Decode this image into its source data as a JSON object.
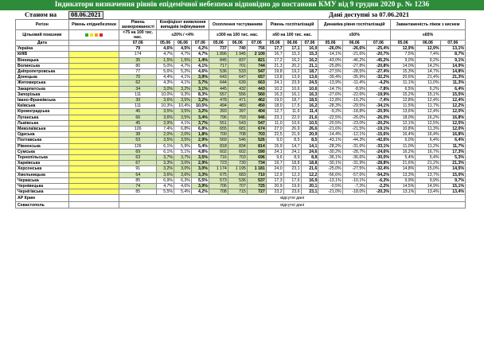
{
  "title": "Індикатори визначення рівнів епідемічної небезпеки відповідно до постанови КМУ від 9 грудня 2020 р. № 1236",
  "status": {
    "label": "Станом на",
    "date": "08.06.2021",
    "available": "Дані доступні за 07.06.2021"
  },
  "swatch_colors": [
    "#33aa33",
    "#ffdd00",
    "#ff9900",
    "#dd2222"
  ],
  "header": {
    "region": "Регіон",
    "level": "Рівень епіднебезпеки",
    "load": "Рівень захворюваності",
    "pcr": "Коефіцієнт виявлення випадків інфікування",
    "testing": "Охоплення тестуванням",
    "hosp": "Рівень госпіталізацій",
    "dynamics": "Динаміка рівня госпіталізацій",
    "oxygen": "Завантаженість ліжок з киснем",
    "target_label": "Цільовий показник",
    "target_load": "<75 на 100 тис. нас.",
    "target_pcr": "≤20% / <4%",
    "target_testing": "≥300 на 100 тис. нас.",
    "target_hosp": "≤60 на 100 тис. нас.",
    "target_dyn": "≤50%",
    "target_oxy": "≤65%",
    "date_label": "Дата",
    "dates": [
      "07.06",
      "05.06",
      "06.06",
      "07.06",
      "05.06",
      "06.06",
      "07.06",
      "05.06",
      "06.06",
      "07.06",
      "05.06",
      "06.06",
      "07.06",
      "05.06",
      "06.06",
      "07.06"
    ]
  },
  "rows": [
    {
      "name": "Україна",
      "v": [
        "79",
        "4,6%",
        "4,5%",
        "4,2%",
        "737",
        "740",
        "756",
        "17,7",
        "17,1",
        "16,9",
        "-26,0%",
        "-26,6%",
        "-25,4%",
        "12,9%",
        "12,9%",
        "13,1%"
      ]
    },
    {
      "name": "КИЇВ",
      "v": [
        "174",
        "4,7%",
        "4,7%",
        "4,7%",
        "1 896",
        "1 945",
        "2 100",
        "16,7",
        "15,3",
        "15,3",
        "-14,1%",
        "-21,6%",
        "-20,7%",
        "7,5%",
        "7,4%",
        "8,7%"
      ]
    },
    {
      "name": "Вінницька",
      "v": [
        "35",
        "1,5%",
        "1,5%",
        "1,4%",
        "845",
        "837",
        "821",
        "17,2",
        "16,2",
        "16,2",
        "-43,0%",
        "-46,2%",
        "-45,2%",
        "9,0%",
        "9,2%",
        "9,1%"
      ]
    },
    {
      "name": "Волинська",
      "v": [
        "80",
        "5,0%",
        "4,7%",
        "4,1%",
        "717",
        "701",
        "744",
        "21,3",
        "20,2",
        "21,1",
        "-25,8%",
        "-27,8%",
        "-20,8%",
        "14,0%",
        "14,2%",
        "14,9%"
      ]
    },
    {
      "name": "Дніпропетровська",
      "v": [
        "77",
        "5,6%",
        "5,2%",
        "4,6%",
        "536",
        "533",
        "547",
        "19,8",
        "19,2",
        "18,7",
        "-27,5%",
        "-28,5%",
        "-27,4%",
        "15,3%",
        "14,7%",
        "14,8%"
      ]
    },
    {
      "name": "Донецька",
      "v": [
        "70",
        "4,4%",
        "4,1%",
        "3,9%",
        "643",
        "647",
        "657",
        "13,8",
        "13,9",
        "13,6",
        "-39,4%",
        "-35,9%",
        "-32,2%",
        "20,6%",
        "21,4%",
        "21,3%"
      ]
    },
    {
      "name": "Житомирська",
      "v": [
        "62",
        "4,3%",
        "4,1%",
        "3,7%",
        "644",
        "639",
        "663",
        "24,1",
        "23,9",
        "24,5",
        "-13,9%",
        "-11,4%",
        "-4,2%",
        "11,1%",
        "11,0%",
        "11,3%"
      ]
    },
    {
      "name": "Закарпатська",
      "v": [
        "34",
        "3,0%",
        "3,2%",
        "3,1%",
        "445",
        "432",
        "443",
        "10,2",
        "10,6",
        "10,6",
        "-14,7%",
        "-8,9%",
        "-7,8%",
        "6,5%",
        "6,2%",
        "6,4%"
      ]
    },
    {
      "name": "Запорізька",
      "v": [
        "111",
        "10,0%",
        "9,3%",
        "8,3%",
        "557",
        "556",
        "560",
        "16,3",
        "16,1",
        "16,3",
        "-27,6%",
        "-22,6%",
        "-19,9%",
        "15,2%",
        "15,1%",
        "15,5%"
      ]
    },
    {
      "name": "Івано-Франківська",
      "v": [
        "39",
        "3,6%",
        "3,5%",
        "3,2%",
        "478",
        "471",
        "462",
        "19,0",
        "18,7",
        "18,5",
        "-12,8%",
        "-10,2%",
        "-7,4%",
        "12,8%",
        "12,4%",
        "12,4%"
      ]
    },
    {
      "name": "Київська",
      "v": [
        "111",
        "10,3%",
        "10,4%",
        "10,5%",
        "494",
        "483",
        "450",
        "18,0",
        "17,5",
        "16,2",
        "-28,3%",
        "-29,5%",
        "-34,1%",
        "11,5%",
        "11,7%",
        "12,2%"
      ]
    },
    {
      "name": "Кіровоградська",
      "v": [
        "46",
        "3,5%",
        "3,5%",
        "3,2%",
        "393",
        "397",
        "404",
        "12,7",
        "11,6",
        "11,4",
        "-9,2%",
        "-18,8%",
        "-20,9%",
        "13,6%",
        "12,4%",
        "12,0%"
      ]
    },
    {
      "name": "Луганська",
      "v": [
        "66",
        "3,6%",
        "3,5%",
        "3,4%",
        "796",
        "793",
        "946",
        "23,1",
        "22,0",
        "21,6",
        "-22,5%",
        "-26,0%",
        "-26,0%",
        "18,0%",
        "16,2%",
        "16,8%"
      ]
    },
    {
      "name": "Львівська",
      "v": [
        "45",
        "3,9%",
        "4,1%",
        "3,7%",
        "551",
        "543",
        "547",
        "11,0",
        "10,6",
        "10,5",
        "-20,5%",
        "-23,0%",
        "-20,2%",
        "12,1%",
        "12,5%",
        "12,5%"
      ]
    },
    {
      "name": "Миколаївська",
      "v": [
        "126",
        "7,4%",
        "6,8%",
        "6,8%",
        "655",
        "681",
        "674",
        "27,0",
        "26,9",
        "26,6",
        "-21,6%",
        "-21,5%",
        "-19,1%",
        "10,8%",
        "11,3%",
        "12,0%"
      ]
    },
    {
      "name": "Одеська",
      "v": [
        "38",
        "2,0%",
        "2,0%",
        "1,8%",
        "700",
        "708",
        "703",
        "22,5",
        "21,9",
        "20,9",
        "-14,4%",
        "-12,1%",
        "-15,6%",
        "16,4%",
        "16,4%",
        "16,8%"
      ]
    },
    {
      "name": "Полтавська",
      "v": [
        "53",
        "3,5%",
        "3,5%",
        "2,9%",
        "569",
        "546",
        "526",
        "9,0",
        "8,5",
        "8,5",
        "-43,1%",
        "-44,3%",
        "-42,6%",
        "6,0%",
        "6,4%",
        "6,4%"
      ]
    },
    {
      "name": "Рівненська",
      "v": [
        "126",
        "6,1%",
        "5,9%",
        "5,4%",
        "818",
        "834",
        "814",
        "15,9",
        "14,7",
        "14,1",
        "-28,2%",
        "-31,6%",
        "-33,1%",
        "11,0%",
        "11,2%",
        "11,7%"
      ]
    },
    {
      "name": "Сумська",
      "v": [
        "69",
        "6,1%",
        "5,1%",
        "4,8%",
        "602",
        "602",
        "590",
        "24,1",
        "24,1",
        "24,6",
        "-30,2%",
        "-28,7%",
        "-24,6%",
        "16,2%",
        "16,7%",
        "17,3%"
      ]
    },
    {
      "name": "Тернопільська",
      "v": [
        "63",
        "3,7%",
        "3,7%",
        "3,5%",
        "716",
        "703",
        "696",
        "9,6",
        "8,9",
        "8,8",
        "-36,1%",
        "-36,6%",
        "-30,0%",
        "5,4%",
        "5,4%",
        "5,3%"
      ]
    },
    {
      "name": "Харківська",
      "v": [
        "67",
        "3,3%",
        "3,0%",
        "2,9%",
        "723",
        "730",
        "734",
        "19,7",
        "18,8",
        "18,8",
        "-30,1%",
        "-31,9%",
        "-28,8%",
        "21,6%",
        "21,2%",
        "21,3%"
      ]
    },
    {
      "name": "Херсонська",
      "v": [
        "91",
        "3,2%",
        "3,0%",
        "3,0%",
        "1 174",
        "1 195",
        "1 181",
        "24,0",
        "23,1",
        "21,6",
        "-25,0%",
        "-27,5%",
        "-32,4%",
        "14,8%",
        "15,0%",
        "14,5%"
      ]
    },
    {
      "name": "Хмельницька",
      "v": [
        "64",
        "3,6%",
        "3,6%",
        "3,3%",
        "675",
        "683",
        "710",
        "12,9",
        "12,3",
        "12,2",
        "-56,6%",
        "-57,6%",
        "-54,2%",
        "13,3%",
        "13,7%",
        "15,0%"
      ]
    },
    {
      "name": "Черкаська",
      "v": [
        "85",
        "6,9%",
        "6,3%",
        "5,5%",
        "573",
        "536",
        "537",
        "17,3",
        "17,6",
        "16,9",
        "-13,1%",
        "-10,1%",
        "-6,3%",
        "9,9%",
        "9,9%",
        "9,7%"
      ]
    },
    {
      "name": "Чернівецька",
      "v": [
        "74",
        "4,7%",
        "4,6%",
        "3,9%",
        "706",
        "707",
        "725",
        "20,9",
        "19,9",
        "20,1",
        "-0,5%",
        "-7,3%",
        "-2,2%",
        "14,5%",
        "14,9%",
        "15,1%"
      ]
    },
    {
      "name": "Чернігівська",
      "v": [
        "85",
        "5,5%",
        "5,4%",
        "4,2%",
        "708",
        "715",
        "727",
        "23,2",
        "23,6",
        "23,1",
        "-21,0%",
        "-18,0%",
        "-20,3%",
        "13,1%",
        "13,4%",
        "13,4%"
      ]
    }
  ],
  "footer": [
    {
      "name": "АР Крим",
      "note": "відсутні дані"
    },
    {
      "name": "Севастополь",
      "note": "відсутні дані"
    }
  ]
}
